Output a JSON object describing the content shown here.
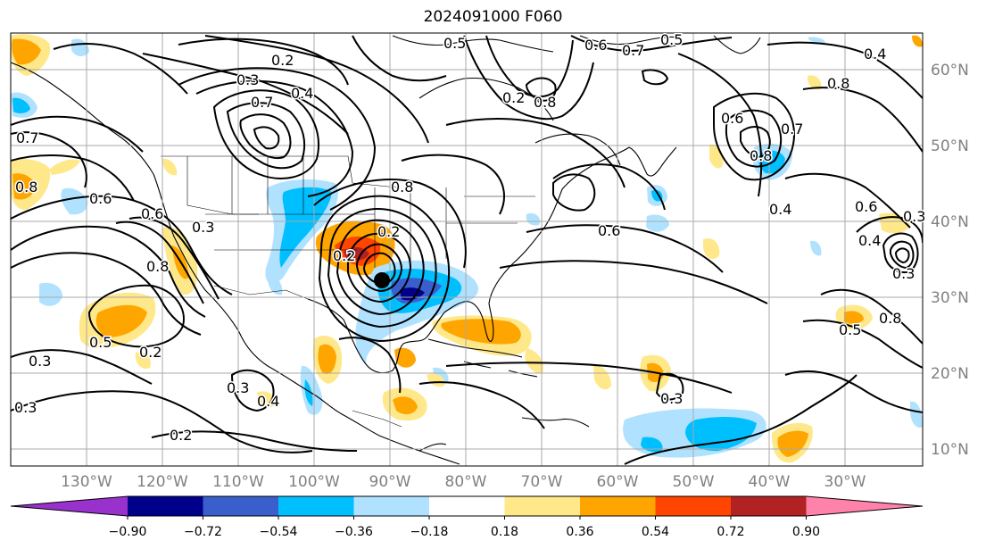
{
  "title": "2024091000 F060",
  "lon_labels": [
    "130°W",
    "120°W",
    "110°W",
    "100°W",
    "90°W",
    "80°W",
    "70°W",
    "60°W",
    "50°W",
    "40°W",
    "30°W"
  ],
  "lat_labels": [
    "60°N",
    "50°N",
    "40°N",
    "30°N",
    "20°N",
    "10°N"
  ],
  "colorbar": {
    "ticks": [
      "−0.90",
      "−0.72",
      "−0.54",
      "−0.36",
      "−0.18",
      "0.18",
      "0.36",
      "0.54",
      "0.72",
      "0.90"
    ],
    "colors": [
      "#9932cc",
      "#00008b",
      "#3a5fcd",
      "#00bfff",
      "#b0e2ff",
      "#ffffff",
      "#ffe88a",
      "#ffa500",
      "#ff4500",
      "#b22222",
      "#ff82ab"
    ]
  },
  "contour_labels": [
    "0.2",
    "0.3",
    "0.7",
    "0.4",
    "0.5",
    "0.6",
    "0.7",
    "0.5",
    "0.4",
    "0.8",
    "0.2",
    "0.8",
    "0.6",
    "0.8",
    "0.7",
    "0.8",
    "0.6",
    "0.7",
    "0.6",
    "0.8",
    "0.4",
    "0.2",
    "0.6",
    "0.3",
    "0.6",
    "0.3",
    "0.4",
    "0.2",
    "0.8",
    "0.5",
    "0.2",
    "0.3",
    "0.3",
    "0.2",
    "0.3",
    "0.4",
    "0.3",
    "0.3",
    "0.5",
    "0.8"
  ]
}
